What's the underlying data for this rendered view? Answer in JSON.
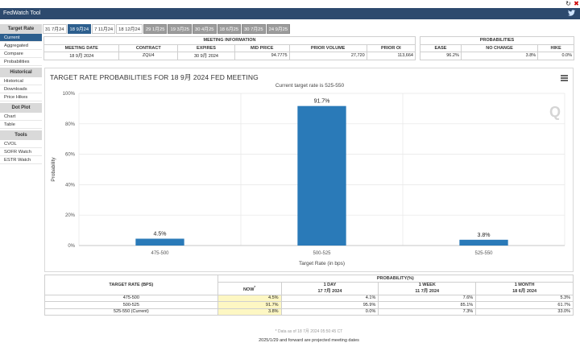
{
  "app": {
    "title": "FedWatch Tool"
  },
  "sidebar": {
    "sections": [
      {
        "heading": "Target Rate",
        "items": [
          "Current",
          "Aggregated",
          "Compare",
          "Probabilities"
        ]
      },
      {
        "heading": "Historical",
        "items": [
          "Historical",
          "Downloads",
          "Price Hikes"
        ]
      },
      {
        "heading": "Dot Plot",
        "items": [
          "Chart",
          "Table"
        ]
      },
      {
        "heading": "Tools",
        "items": [
          "CVOL",
          "SOFR Watch",
          "ESTR Watch"
        ]
      }
    ],
    "active_item": "Current"
  },
  "tabs": [
    "31 7月24",
    "18 9月24",
    "7 11月24",
    "18 12月24",
    "29 1月25",
    "19 3月25",
    "30 4月25",
    "18 6月25",
    "30 7月25",
    "24 9月25"
  ],
  "active_tab": "18 9月24",
  "meeting_info": {
    "header": "MEETING INFORMATION",
    "columns": [
      "MEETING DATE",
      "CONTRACT",
      "EXPIRES",
      "MID PRICE",
      "PRIOR VOLUME",
      "PRIOR OI"
    ],
    "row": [
      "18 9月 2024",
      "ZQU4",
      "30 9月 2024",
      "94.7775",
      "27,720",
      "113,664"
    ]
  },
  "probabilities": {
    "header": "PROBABILITIES",
    "columns": [
      "EASE",
      "NO CHANGE",
      "HIKE"
    ],
    "row": [
      "96.2%",
      "3.8%",
      "0.0%"
    ]
  },
  "chart": {
    "title": "TARGET RATE PROBABILITIES FOR 18 9月 2024 FED MEETING",
    "subtitle": "Current target rate is 525-550",
    "menu_icon": "hamburger-menu-icon",
    "watermark": "Q"
  },
  "chart_data": {
    "type": "bar",
    "categories": [
      "475-500",
      "500-525",
      "525-550"
    ],
    "values": [
      4.5,
      91.7,
      3.8
    ],
    "data_labels": [
      "4.5%",
      "91.7%",
      "3.8%"
    ],
    "xlabel": "Target Rate (in bps)",
    "ylabel": "Probability",
    "ylim": [
      0,
      100
    ],
    "yticks": [
      "0%",
      "20%",
      "40%",
      "60%",
      "80%",
      "100%"
    ],
    "bar_color": "#2a7ab8",
    "grid": true
  },
  "bottom_table": {
    "target_header": "TARGET RATE (BPS)",
    "prob_header": "PROBABILITY(%)",
    "now_label": "NOW",
    "now_marker": "*",
    "col1": {
      "label": "1 DAY",
      "date": "17 7月 2024"
    },
    "col2": {
      "label": "1 WEEK",
      "date": "11 7月 2024"
    },
    "col3": {
      "label": "1 MONTH",
      "date": "18 6月 2024"
    },
    "rows": [
      {
        "rate": "475-500",
        "now": "4.5%",
        "d1": "4.1%",
        "w1": "7.6%",
        "m1": "5.3%"
      },
      {
        "rate": "500-525",
        "now": "91.7%",
        "d1": "95.9%",
        "w1": "85.1%",
        "m1": "61.7%"
      },
      {
        "rate": "525-550 (Current)",
        "now": "3.8%",
        "d1": "0.0%",
        "w1": "7.3%",
        "m1": "33.0%"
      }
    ],
    "data_note": "* Data as of 18 7月 2024 05:50:45 CT",
    "footnote": "2025/1/29 and forward are projected meeting dates"
  },
  "colors": {
    "title_bar": "#2d4a6e",
    "active": "#2d5f8e",
    "bar": "#2a7ab8",
    "now_highlight": "#fdf7c3"
  }
}
